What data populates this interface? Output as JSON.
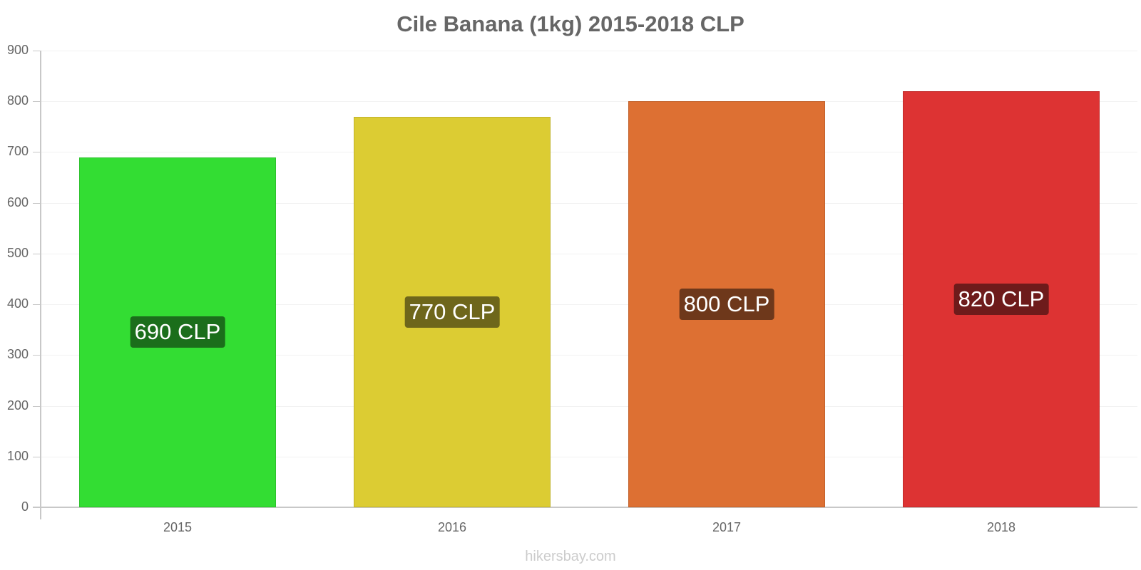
{
  "chart_data": {
    "type": "bar",
    "title": "Cile Banana (1kg) 2015-2018 CLP",
    "categories": [
      "2015",
      "2016",
      "2017",
      "2018"
    ],
    "values": [
      690,
      770,
      800,
      820
    ],
    "labels": [
      "690 CLP",
      "770 CLP",
      "800 CLP",
      "820 CLP"
    ],
    "colors": [
      "#33dd33",
      "#dccc33",
      "#dd7033",
      "#dd3333"
    ],
    "label_bg": [
      "#1b6e1b",
      "#6e661b",
      "#6e381b",
      "#6e1b1b"
    ],
    "xlabel": "",
    "ylabel": "",
    "ylim": [
      0,
      900
    ],
    "yticks": [
      0,
      100,
      200,
      300,
      400,
      500,
      600,
      700,
      800,
      900
    ],
    "grid": true,
    "legend": "none"
  },
  "watermark": "hikersbay.com"
}
